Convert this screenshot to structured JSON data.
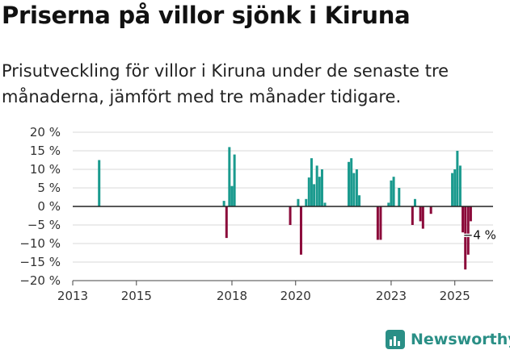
{
  "header": {
    "title": "Priserna på villor sjönk i Kiruna",
    "subtitle": "Prisutveckling för villor i Kiruna under de senaste tre månaderna, jämfört med tre månader tidigare."
  },
  "brand": {
    "name": "Newsworthy",
    "icon": "newsworthy-logo-icon",
    "color": "#2a8f86"
  },
  "colors": {
    "positive": "#1a9a8e",
    "negative": "#8b0a3a",
    "zero_line": "#222222",
    "grid": "#d8d8d8"
  },
  "chart_data": {
    "type": "bar",
    "title": "",
    "xlabel": "",
    "ylabel": "",
    "ylim": [
      -20,
      20
    ],
    "y_ticks": [
      20,
      15,
      10,
      5,
      0,
      -5,
      -10,
      -15,
      -20
    ],
    "y_tick_labels": [
      "20 %",
      "15 %",
      "10 %",
      "5 %",
      "0 %",
      "−5 %",
      "−10 %",
      "−15 %",
      "−20 %"
    ],
    "xlim": [
      2013,
      2026.2
    ],
    "x_ticks": [
      2013,
      2015,
      2018,
      2020,
      2023,
      2025
    ],
    "x_tick_labels": [
      "2013",
      "2015",
      "2018",
      "2020",
      "2023",
      "2025"
    ],
    "grid": true,
    "annotation": {
      "label": "−4 %",
      "x": 2025.6,
      "y": -4
    },
    "series": [
      {
        "x": [
          2013.83,
          2017.75,
          2017.83,
          2017.92,
          2018.0,
          2018.08,
          2019.83,
          2020.08,
          2020.17,
          2020.33,
          2020.42,
          2020.5,
          2020.58,
          2020.67,
          2020.75,
          2020.83,
          2020.92,
          2021.67,
          2021.75,
          2021.83,
          2021.92,
          2022.0,
          2022.58,
          2022.67,
          2022.92,
          2023.0,
          2023.08,
          2023.25,
          2023.67,
          2023.75,
          2023.92,
          2024.0,
          2024.25,
          2024.92,
          2025.0,
          2025.08,
          2025.17,
          2025.25,
          2025.33,
          2025.42,
          2025.5
        ],
        "values": [
          12.5,
          1.5,
          -8.5,
          16,
          5.5,
          14,
          -5,
          2,
          -13,
          2,
          7.8,
          13,
          6,
          11,
          8,
          10,
          1,
          12,
          13,
          9,
          10,
          3,
          -9,
          -9,
          1,
          7,
          8,
          5,
          -5,
          2,
          -4,
          -6,
          -2,
          9,
          10,
          15,
          11,
          -7,
          -17,
          -13,
          -4
        ]
      }
    ]
  }
}
